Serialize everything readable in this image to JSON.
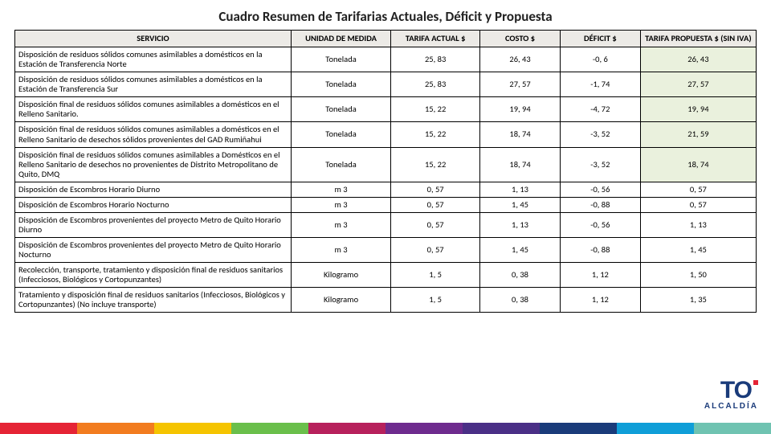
{
  "title": "Cuadro Resumen de Tarifarias Actuales, Déficit y Propuesta",
  "columns": {
    "c0": "SERVICIO",
    "c1": "UNIDAD DE MEDIDA",
    "c2": "TARIFA ACTUAL $",
    "c3": "COSTO $",
    "c4": "DÉFICIT $",
    "c5": "TARIFA PROPUESTA $ (SIN IVA)"
  },
  "rows": [
    {
      "svc": "Disposición de residuos sólidos comunes asimilables a domésticos en la Estación de Transferencia Norte",
      "u": "Tonelada",
      "a": "25, 83",
      "c": "26, 43",
      "d": "-0, 6",
      "p": "26, 43",
      "hl": true
    },
    {
      "svc": "Disposición de residuos sólidos comunes asimilables a domésticos en la Estación de Transferencia Sur",
      "u": "Tonelada",
      "a": "25, 83",
      "c": "27, 57",
      "d": "-1, 74",
      "p": "27, 57",
      "hl": true
    },
    {
      "svc": "Disposición final de residuos sólidos comunes asimilables a domésticos en el Relleno Sanitario.",
      "u": "Tonelada",
      "a": "15, 22",
      "c": "19, 94",
      "d": "-4, 72",
      "p": "19, 94",
      "hl": true
    },
    {
      "svc": "Disposición final de residuos sólidos comunes asimilables a domésticos en el Relleno Sanitario de desechos sólidos provenientes del GAD Rumiñahui",
      "u": "Tonelada",
      "a": "15, 22",
      "c": "18, 74",
      "d": "-3, 52",
      "p": "21, 59",
      "hl": true
    },
    {
      "svc": "Disposición final de residuos sólidos comunes asimilables a Domésticos en el Relleno Sanitario de desechos no provenientes de Distrito Metropolitano de Quito, DMQ",
      "u": "Tonelada",
      "a": "15, 22",
      "c": "18, 74",
      "d": "-3, 52",
      "p": "18, 74",
      "hl": true
    },
    {
      "svc": "Disposición de Escombros Horario Diurno",
      "u": "m 3",
      "a": "0, 57",
      "c": "1, 13",
      "d": "-0, 56",
      "p": "0, 57",
      "hl": false
    },
    {
      "svc": "Disposición de Escombros Horario Nocturno",
      "u": "m 3",
      "a": "0, 57",
      "c": "1, 45",
      "d": "-0, 88",
      "p": "0, 57",
      "hl": false
    },
    {
      "svc": "Disposición de Escombros provenientes del proyecto Metro de Quito Horario Diurno",
      "u": "m 3",
      "a": "0, 57",
      "c": "1, 13",
      "d": "-0, 56",
      "p": "1, 13",
      "hl": false
    },
    {
      "svc": "Disposición de Escombros provenientes del proyecto Metro de Quito Horario Nocturno",
      "u": "m 3",
      "a": "0, 57",
      "c": "1, 45",
      "d": "-0, 88",
      "p": "1, 45",
      "hl": false
    },
    {
      "svc": "Recolección, transporte, tratamiento y disposición final de residuos sanitarios (Infecciosos, Biológicos y Cortopunzantes)",
      "u": "Kilogramo",
      "a": "1, 5",
      "c": "0, 38",
      "d": "1, 12",
      "p": "1, 50",
      "hl": false
    },
    {
      "svc": "Tratamiento y disposición final de residuos sanitarios (Infecciosos, Biológicos y Cortopunzantes)  (No incluye transporte)",
      "u": "Kilogramo",
      "a": "1, 5",
      "c": "0, 38",
      "d": "1, 12",
      "p": "1, 35",
      "hl": false
    }
  ],
  "stripe_colors": [
    "#e52435",
    "#f27c1f",
    "#f5c400",
    "#6abf4b",
    "#b7215c",
    "#6e2b8e",
    "#4a2f86",
    "#1a3b7a",
    "#0f9ed8",
    "#6fc3b1"
  ],
  "stripe_widths": [
    96,
    96,
    96,
    96,
    96,
    96,
    96,
    96,
    96,
    96
  ],
  "logo": {
    "text": "TO",
    "sub": "ALCALDÍA"
  }
}
